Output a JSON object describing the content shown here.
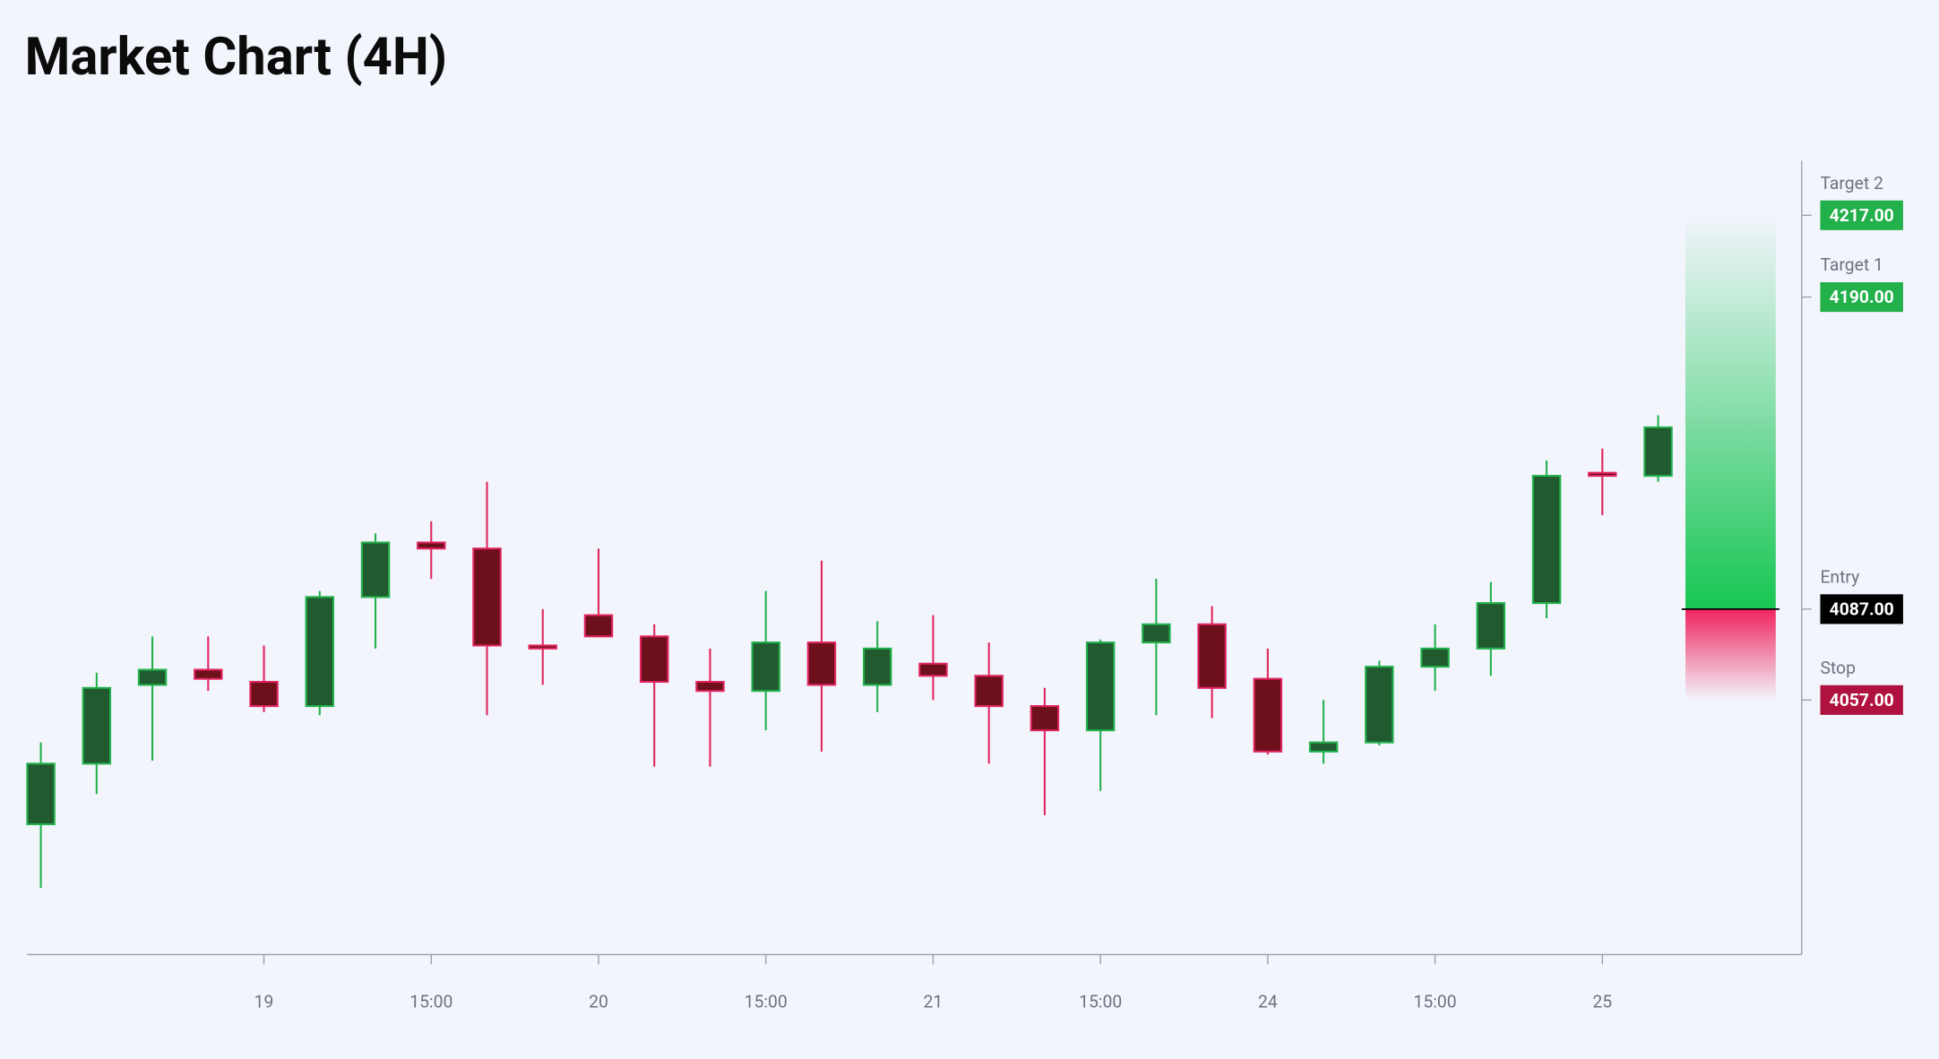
{
  "chart_data": {
    "type": "candlestick",
    "title": "Market Chart (4H)",
    "categories": [
      null,
      null,
      null,
      null,
      "19",
      null,
      null,
      "15:00",
      null,
      null,
      "20",
      null,
      null,
      "15:00",
      null,
      null,
      "21",
      null,
      null,
      "15:00",
      null,
      null,
      "24",
      null,
      null,
      "15:00",
      null,
      null,
      "25",
      null
    ],
    "series": {
      "open": [
        4016,
        4036,
        4062,
        4067,
        4063,
        4055,
        4091,
        4109,
        4107,
        4075,
        4085,
        4078,
        4063,
        4060,
        4076,
        4062,
        4069,
        4065,
        4055,
        4047,
        4076,
        4082,
        4064,
        4040,
        4043,
        4068,
        4074,
        4089,
        4132,
        4131
      ],
      "high": [
        4043,
        4066,
        4078,
        4078,
        4075,
        4093,
        4112,
        4116,
        4129,
        4087,
        4107,
        4082,
        4074,
        4093,
        4103,
        4083,
        4085,
        4076,
        4061,
        4077,
        4097,
        4088,
        4074,
        4057,
        4070,
        4082,
        4096,
        4136,
        4140,
        4151
      ],
      "low": [
        3995,
        4026,
        4037,
        4060,
        4053,
        4052,
        4074,
        4097,
        4052,
        4062,
        4078,
        4035,
        4035,
        4047,
        4040,
        4053,
        4057,
        4036,
        4019,
        4027,
        4052,
        4051,
        4039,
        4036,
        4042,
        4060,
        4065,
        4084,
        4118,
        4129
      ],
      "close": [
        4036,
        4061,
        4067,
        4064,
        4055,
        4091,
        4109,
        4107,
        4075,
        4074,
        4078,
        4063,
        4060,
        4076,
        4062,
        4074,
        4065,
        4055,
        4047,
        4076,
        4082,
        4061,
        4040,
        4043,
        4068,
        4074,
        4089,
        4131,
        4131,
        4147
      ]
    },
    "up_color": "#22b14c",
    "down_color": "#e0245e",
    "ylim": [
      3973,
      4235
    ],
    "levels": [
      {
        "name": "Target 2",
        "value": 4217,
        "label": "4217.00",
        "color": "#22b04b"
      },
      {
        "name": "Target 1",
        "value": 4190,
        "label": "4190.00",
        "color": "#22b04b"
      },
      {
        "name": "Entry",
        "value": 4087,
        "label": "4087.00",
        "color": "#000000"
      },
      {
        "name": "Stop",
        "value": 4057,
        "label": "4057.00",
        "color": "#b0123f"
      }
    ]
  }
}
